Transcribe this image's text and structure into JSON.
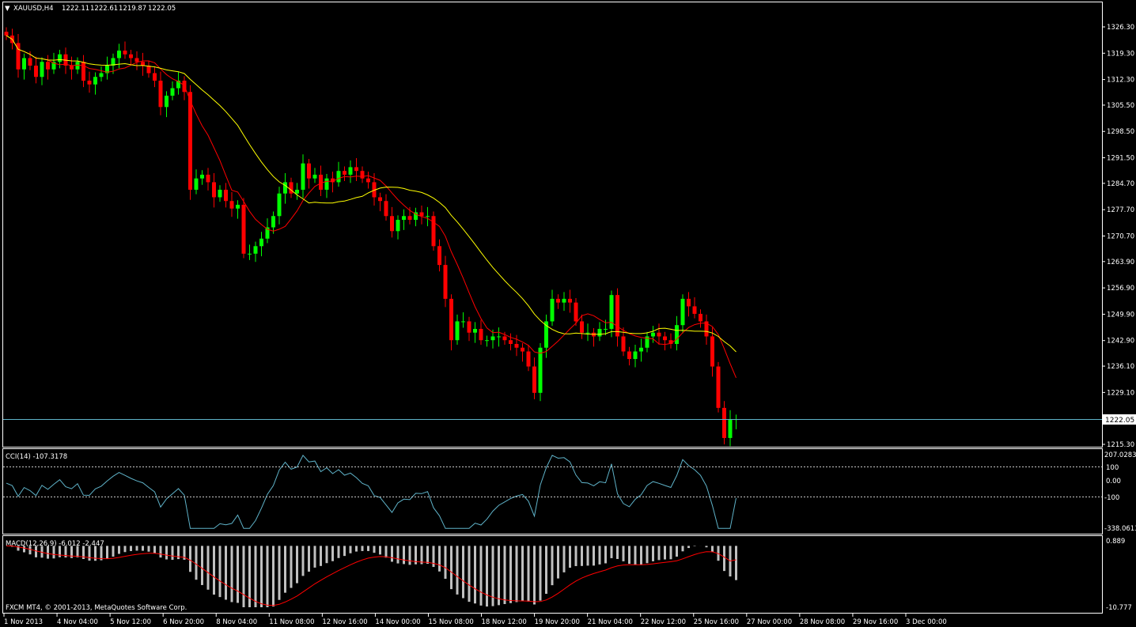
{
  "header": {
    "symbol": "XAUUSD,H4",
    "open": "1222.11",
    "high": "1222.61",
    "low": "1219.87",
    "close": "1222.05"
  },
  "price_panel": {
    "price_ticks": [
      "1326.30",
      "1319.30",
      "1312.30",
      "1305.50",
      "1298.50",
      "1291.50",
      "1284.70",
      "1277.70",
      "1270.70",
      "1263.90",
      "1256.90",
      "1249.90",
      "1242.90",
      "1236.10",
      "1229.10",
      "1215.30"
    ],
    "current_price": "1222.05"
  },
  "cci_panel": {
    "label": "CCI(14) -107.3178",
    "ticks": [
      "207.0283",
      "100",
      "0.00",
      "-100",
      "-338.0613"
    ]
  },
  "macd_panel": {
    "label": "MACD(12,26,9) -6.012 -2.447",
    "ticks": [
      "0.889",
      "-10.777"
    ]
  },
  "copyright": "FXCM MT4, © 2001-2013, MetaQuotes Software Corp.",
  "time_axis": [
    "1 Nov 2013",
    "4 Nov 04:00",
    "5 Nov 12:00",
    "6 Nov 20:00",
    "8 Nov 04:00",
    "11 Nov 08:00",
    "12 Nov 16:00",
    "14 Nov 00:00",
    "15 Nov 08:00",
    "18 Nov 12:00",
    "19 Nov 20:00",
    "21 Nov 04:00",
    "22 Nov 12:00",
    "25 Nov 16:00",
    "27 Nov 00:00",
    "28 Nov 08:00",
    "29 Nov 16:00",
    "3 Dec 00:00"
  ],
  "colors": {
    "bull": "#00ff00",
    "bear": "#ff0000",
    "fast_ma": "#ff0000",
    "slow_ma": "#ffff00",
    "cci_line": "#5fb3c9",
    "macd_hist": "#c0c0c0",
    "macd_signal": "#ff0000",
    "price_line": "#5fb3c9"
  },
  "chart_data": {
    "type": "candlestick",
    "symbol": "XAUUSD",
    "timeframe": "H4",
    "ylim": [
      1215.3,
      1326.3
    ],
    "closes": [
      1324,
      1322,
      1315,
      1318,
      1316,
      1313,
      1317,
      1315,
      1317,
      1319,
      1316,
      1315,
      1317,
      1312,
      1311,
      1313,
      1314,
      1316,
      1318,
      1320,
      1319,
      1318,
      1317,
      1316,
      1314,
      1312,
      1305,
      1308,
      1310,
      1312,
      1309,
      1283,
      1286,
      1287,
      1285,
      1281,
      1283,
      1280,
      1278,
      1279,
      1266,
      1266,
      1268,
      1270,
      1273,
      1276,
      1282,
      1285,
      1282,
      1283,
      1290,
      1286,
      1287,
      1283,
      1286,
      1285,
      1288,
      1287,
      1289,
      1288,
      1286,
      1285,
      1281,
      1280,
      1276,
      1272,
      1275,
      1276,
      1275,
      1277,
      1276,
      1276,
      1268,
      1263,
      1254,
      1243,
      1248,
      1248,
      1245,
      1246,
      1243,
      1243,
      1244,
      1244,
      1243,
      1242,
      1241,
      1240,
      1236,
      1229,
      1241,
      1248,
      1254,
      1253,
      1254,
      1253,
      1248,
      1245,
      1245,
      1244,
      1246,
      1246,
      1255,
      1244,
      1240,
      1238,
      1240,
      1241,
      1244,
      1245,
      1244,
      1243,
      1242,
      1247,
      1254,
      1252,
      1250,
      1248,
      1244,
      1236,
      1225,
      1217,
      1222,
      1222
    ],
    "cci_last": -107.3178,
    "macd_last": -6.012,
    "macd_signal_last": -2.447
  }
}
